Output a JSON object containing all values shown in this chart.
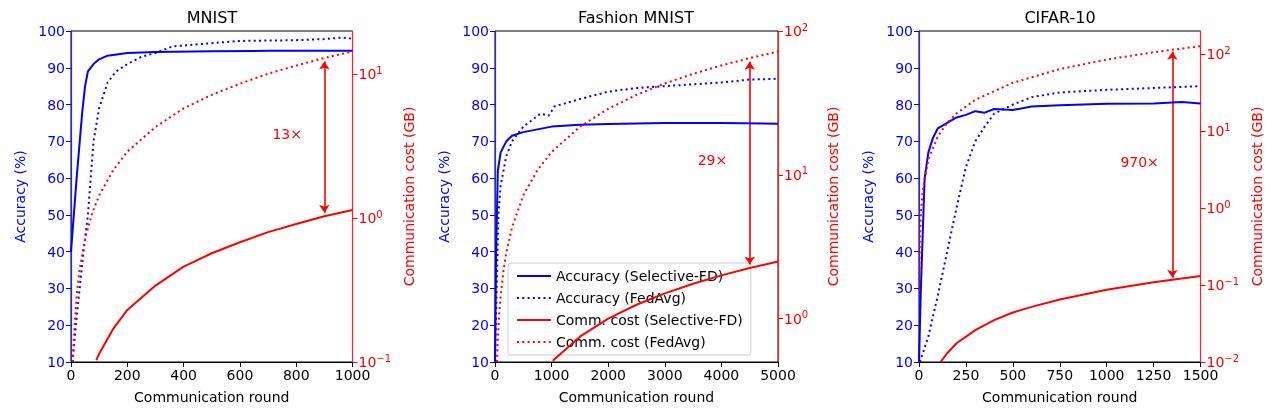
{
  "chart_data": [
    {
      "type": "line",
      "title": "MNIST",
      "xlabel": "Communication round",
      "ylabel": "Accuracy (%)",
      "y2label": "Communication cost (GB)",
      "xlim": [
        0,
        1000
      ],
      "xticks": [
        0,
        200,
        400,
        600,
        800,
        1000
      ],
      "ylim": [
        10,
        100
      ],
      "yticks": [
        10,
        20,
        30,
        40,
        50,
        60,
        70,
        80,
        90,
        100
      ],
      "y2lim": [
        0.1,
        20
      ],
      "y2ticks": [
        {
          "value": 0.1,
          "label": "10$^{−1}$"
        },
        {
          "value": 1,
          "label": "10$^{0}$"
        },
        {
          "value": 10,
          "label": "10$^{1}$"
        }
      ],
      "log": "y2",
      "grid": false,
      "legend": false,
      "marker": "none",
      "annotations": [
        "13×"
      ],
      "series": [
        {
          "color": "#0000ff",
          "line_style": "solid",
          "x": [
            0,
            20,
            40,
            50,
            60,
            80,
            100,
            130,
            200,
            300,
            500,
            700,
            1000
          ],
          "values": [
            40,
            60,
            78,
            85,
            89,
            91,
            92.3,
            93.3,
            94,
            94.3,
            94.5,
            94.6,
            94.6
          ]
        },
        {
          "color": "#0000ff",
          "line_style": "dotted",
          "x": [
            5,
            20,
            40,
            60,
            80,
            100,
            130,
            160,
            200,
            250,
            300,
            360,
            500,
            600,
            800,
            900,
            960,
            1000
          ],
          "values": [
            10,
            22,
            37,
            50,
            70,
            79,
            86,
            89,
            91,
            93,
            94,
            95.8,
            96.7,
            97.3,
            97.5,
            97.8,
            98.2,
            97.9
          ]
        },
        {
          "color": "#ff0000",
          "line_style": "solid",
          "axis": "y2",
          "x": [
            90,
            100,
            150,
            200,
            300,
            400,
            500,
            600,
            700,
            800,
            900,
            1000
          ],
          "values": [
            0.103,
            0.114,
            0.17,
            0.23,
            0.34,
            0.46,
            0.57,
            0.68,
            0.8,
            0.91,
            1.03,
            1.14
          ]
        },
        {
          "color": "#ff0000",
          "line_style": "dotted",
          "axis": "y2",
          "x": [
            7,
            10,
            20,
            30,
            50,
            75,
            100,
            150,
            200,
            300,
            400,
            500,
            600,
            700,
            800,
            900,
            1000
          ],
          "values": [
            0.1,
            0.144,
            0.29,
            0.43,
            0.72,
            1.08,
            1.44,
            2.16,
            2.9,
            4.3,
            5.8,
            7.2,
            8.6,
            10.1,
            11.5,
            13,
            14.4
          ]
        }
      ]
    },
    {
      "type": "line",
      "title": "Fashion MNIST",
      "xlabel": "Communication round",
      "ylabel": "Accuracy (%)",
      "y2label": "Communication cost (GB)",
      "xlim": [
        0,
        5000
      ],
      "xticks": [
        0,
        1000,
        2000,
        3000,
        4000,
        5000
      ],
      "ylim": [
        10,
        100
      ],
      "yticks": [
        10,
        20,
        30,
        40,
        50,
        60,
        70,
        80,
        90,
        100
      ],
      "y2lim": [
        0.5,
        100
      ],
      "y2ticks": [
        {
          "value": 1,
          "label": "10$^{0}$"
        },
        {
          "value": 10,
          "label": "10$^{1}$"
        },
        {
          "value": 100,
          "label": "10$^{2}$"
        }
      ],
      "log": "y2",
      "grid": false,
      "legend": "bottom",
      "marker": "none",
      "annotations": [
        "29×"
      ],
      "series": [
        {
          "name": "Accuracy (Selective-FD)",
          "color": "#0000ff",
          "line_style": "solid",
          "x": [
            0,
            20,
            50,
            100,
            200,
            300,
            500,
            1000,
            1500,
            2000,
            3000,
            4000,
            5000
          ],
          "values": [
            10,
            40,
            62,
            67,
            70,
            71.5,
            72.5,
            74,
            74.5,
            74.7,
            75,
            75,
            74.8
          ]
        },
        {
          "name": "Accuracy (FedAvg)",
          "color": "#0000ff",
          "line_style": "dotted",
          "x": [
            0,
            30,
            60,
            100,
            200,
            300,
            500,
            800,
            950,
            1050,
            1500,
            2000,
            2500,
            3000,
            3500,
            4000,
            4500,
            5000
          ],
          "values": [
            10,
            30,
            50,
            58,
            66,
            70,
            74,
            77.5,
            77,
            79.5,
            81.5,
            83.5,
            84.5,
            85,
            85.5,
            86,
            86.8,
            87
          ]
        },
        {
          "name": "Comm. cost (Selective-FD)",
          "color": "#ff0000",
          "line_style": "solid",
          "axis": "y2",
          "x": [
            1020,
            1500,
            2000,
            2500,
            3000,
            3500,
            4000,
            4500,
            5000
          ],
          "values": [
            0.51,
            0.75,
            1,
            1.25,
            1.5,
            1.75,
            2,
            2.25,
            2.5
          ]
        },
        {
          "name": "Comm. cost (FedAvg)",
          "color": "#ff0000",
          "line_style": "dotted",
          "axis": "y2",
          "x": [
            35,
            50,
            75,
            100,
            150,
            200,
            300,
            500,
            750,
            1000,
            1500,
            2000,
            2500,
            3000,
            3500,
            4000,
            4500,
            5000
          ],
          "values": [
            0.5,
            0.72,
            1.08,
            1.44,
            2.16,
            2.9,
            4.3,
            7.2,
            10.8,
            14.4,
            21.6,
            28.8,
            36,
            43.2,
            50.4,
            57.6,
            64.8,
            72
          ]
        }
      ]
    },
    {
      "type": "line",
      "title": "CIFAR-10",
      "xlabel": "Communication round",
      "ylabel": "Accuracy (%)",
      "y2label": "Communication cost (GB)",
      "xlim": [
        0,
        1500
      ],
      "xticks": [
        0,
        250,
        500,
        750,
        1000,
        1250,
        1500
      ],
      "ylim": [
        10,
        100
      ],
      "yticks": [
        10,
        20,
        30,
        40,
        50,
        60,
        70,
        80,
        90,
        100
      ],
      "y2lim": [
        0.01,
        200
      ],
      "y2ticks": [
        {
          "value": 0.01,
          "label": "10$^{−2}$"
        },
        {
          "value": 0.1,
          "label": "10$^{−1}$"
        },
        {
          "value": 1,
          "label": "10$^{0}$"
        },
        {
          "value": 10,
          "label": "10$^{1}$"
        },
        {
          "value": 100,
          "label": "10$^{2}$"
        }
      ],
      "log": "y2",
      "grid": false,
      "legend": false,
      "marker": "none",
      "annotations": [
        "970×"
      ],
      "series": [
        {
          "color": "#0000ff",
          "line_style": "solid",
          "x": [
            0,
            10,
            20,
            30,
            50,
            75,
            100,
            150,
            200,
            250,
            300,
            350,
            400,
            500,
            600,
            750,
            1000,
            1250,
            1400,
            1500
          ],
          "values": [
            10,
            30,
            45,
            60,
            67,
            71,
            73.5,
            75,
            76.5,
            77.2,
            78.2,
            77.8,
            78.8,
            78.5,
            79.5,
            79.8,
            80.2,
            80.3,
            80.7,
            80.3
          ]
        },
        {
          "color": "#0000ff",
          "line_style": "dotted",
          "x": [
            5,
            50,
            100,
            150,
            200,
            250,
            300,
            350,
            400,
            500,
            600,
            750,
            1000,
            1250,
            1500
          ],
          "values": [
            10,
            17,
            28,
            40,
            52,
            63,
            70,
            74,
            77.5,
            80,
            82,
            83.3,
            84,
            84.5,
            85
          ]
        },
        {
          "color": "#ff0000",
          "line_style": "solid",
          "axis": "y2",
          "x": [
            115,
            150,
            200,
            300,
            400,
            500,
            600,
            750,
            1000,
            1250,
            1500
          ],
          "values": [
            0.01,
            0.013,
            0.0175,
            0.026,
            0.035,
            0.044,
            0.052,
            0.065,
            0.087,
            0.109,
            0.131
          ]
        },
        {
          "color": "#ff0000",
          "line_style": "dotted",
          "axis": "y2",
          "x": [
            1,
            2,
            5,
            10,
            20,
            50,
            100,
            150,
            200,
            300,
            500,
            750,
            1000,
            1250,
            1500
          ],
          "values": [
            0.085,
            0.17,
            0.43,
            0.85,
            1.7,
            4.3,
            8.5,
            12.8,
            17,
            25.5,
            42.5,
            64,
            85,
            106,
            127
          ]
        }
      ]
    }
  ]
}
